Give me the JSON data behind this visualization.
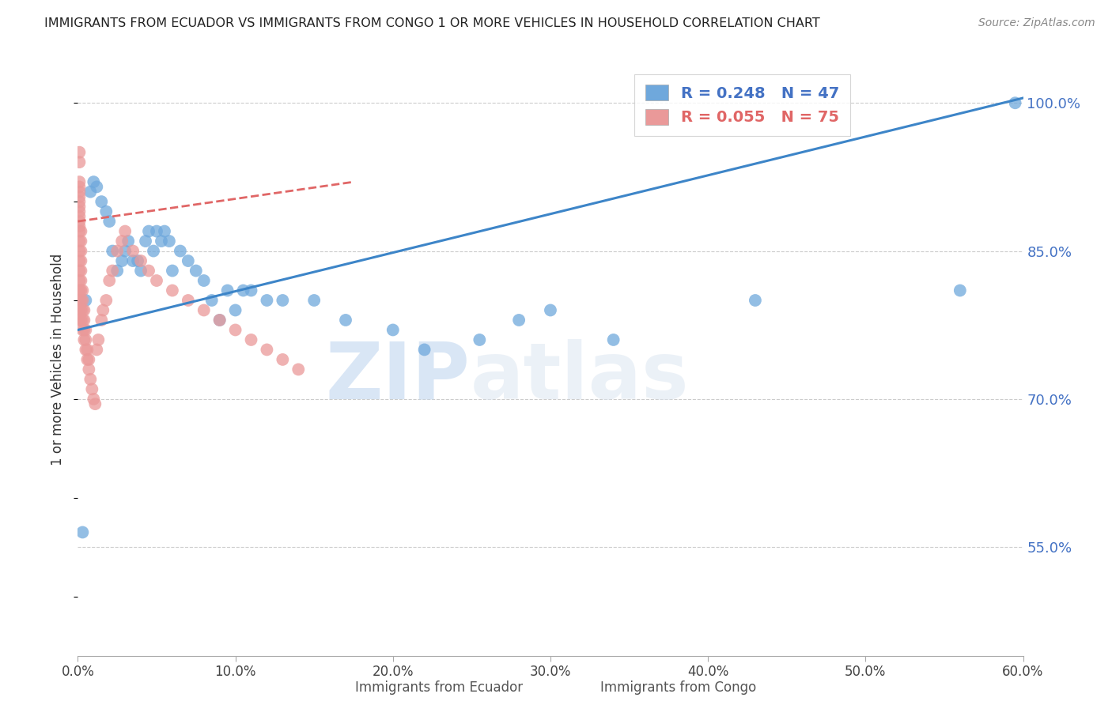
{
  "title": "IMMIGRANTS FROM ECUADOR VS IMMIGRANTS FROM CONGO 1 OR MORE VEHICLES IN HOUSEHOLD CORRELATION CHART",
  "source": "Source: ZipAtlas.com",
  "ylabel": "1 or more Vehicles in Household",
  "xlim_min": 0.0,
  "xlim_max": 0.6,
  "ylim_min": 0.44,
  "ylim_max": 1.04,
  "yticks": [
    0.55,
    0.7,
    0.85,
    1.0
  ],
  "ytick_labels": [
    "55.0%",
    "70.0%",
    "85.0%",
    "100.0%"
  ],
  "xticks": [
    0.0,
    0.1,
    0.2,
    0.3,
    0.4,
    0.5,
    0.6
  ],
  "xtick_labels": [
    "0.0%",
    "10.0%",
    "20.0%",
    "30.0%",
    "40.0%",
    "50.0%",
    "60.0%"
  ],
  "ecuador_color": "#6fa8dc",
  "congo_color": "#ea9999",
  "trend_ecuador_color": "#3d85c8",
  "trend_congo_color": "#e06666",
  "r_ecuador": 0.248,
  "n_ecuador": 47,
  "r_congo": 0.055,
  "n_congo": 75,
  "legend_ecuador": "Immigrants from Ecuador",
  "legend_congo": "Immigrants from Congo",
  "watermark_zip": "ZIP",
  "watermark_atlas": "atlas",
  "ecuador_x": [
    0.003,
    0.005,
    0.008,
    0.01,
    0.012,
    0.015,
    0.018,
    0.02,
    0.022,
    0.025,
    0.028,
    0.03,
    0.032,
    0.035,
    0.038,
    0.04,
    0.043,
    0.045,
    0.048,
    0.05,
    0.053,
    0.055,
    0.058,
    0.06,
    0.065,
    0.07,
    0.075,
    0.08,
    0.085,
    0.09,
    0.095,
    0.1,
    0.105,
    0.11,
    0.12,
    0.13,
    0.15,
    0.17,
    0.2,
    0.22,
    0.255,
    0.3,
    0.34,
    0.28,
    0.43,
    0.56,
    0.595
  ],
  "ecuador_y": [
    0.565,
    0.8,
    0.91,
    0.92,
    0.915,
    0.9,
    0.89,
    0.88,
    0.85,
    0.83,
    0.84,
    0.85,
    0.86,
    0.84,
    0.84,
    0.83,
    0.86,
    0.87,
    0.85,
    0.87,
    0.86,
    0.87,
    0.86,
    0.83,
    0.85,
    0.84,
    0.83,
    0.82,
    0.8,
    0.78,
    0.81,
    0.79,
    0.81,
    0.81,
    0.8,
    0.8,
    0.8,
    0.78,
    0.77,
    0.75,
    0.76,
    0.79,
    0.76,
    0.78,
    0.8,
    0.81,
    1.0
  ],
  "ecuador_trend_x0": 0.0,
  "ecuador_trend_y0": 0.77,
  "ecuador_trend_x1": 0.6,
  "ecuador_trend_y1": 1.005,
  "congo_x": [
    0.001,
    0.001,
    0.001,
    0.001,
    0.001,
    0.001,
    0.001,
    0.001,
    0.001,
    0.001,
    0.001,
    0.001,
    0.001,
    0.001,
    0.001,
    0.001,
    0.001,
    0.001,
    0.001,
    0.001,
    0.002,
    0.002,
    0.002,
    0.002,
    0.002,
    0.002,
    0.002,
    0.002,
    0.002,
    0.002,
    0.003,
    0.003,
    0.003,
    0.003,
    0.003,
    0.004,
    0.004,
    0.004,
    0.004,
    0.005,
    0.005,
    0.005,
    0.006,
    0.006,
    0.007,
    0.007,
    0.008,
    0.009,
    0.01,
    0.011,
    0.012,
    0.013,
    0.015,
    0.016,
    0.018,
    0.02,
    0.022,
    0.025,
    0.028,
    0.03,
    0.035,
    0.04,
    0.045,
    0.05,
    0.06,
    0.07,
    0.08,
    0.09,
    0.1,
    0.11,
    0.12,
    0.13,
    0.14,
    0.001,
    0.001
  ],
  "congo_y": [
    0.78,
    0.79,
    0.8,
    0.81,
    0.82,
    0.83,
    0.84,
    0.85,
    0.86,
    0.87,
    0.875,
    0.88,
    0.885,
    0.89,
    0.895,
    0.9,
    0.905,
    0.91,
    0.915,
    0.92,
    0.78,
    0.79,
    0.8,
    0.81,
    0.82,
    0.83,
    0.84,
    0.85,
    0.86,
    0.87,
    0.77,
    0.78,
    0.79,
    0.8,
    0.81,
    0.76,
    0.77,
    0.78,
    0.79,
    0.75,
    0.76,
    0.77,
    0.74,
    0.75,
    0.73,
    0.74,
    0.72,
    0.71,
    0.7,
    0.695,
    0.75,
    0.76,
    0.78,
    0.79,
    0.8,
    0.82,
    0.83,
    0.85,
    0.86,
    0.87,
    0.85,
    0.84,
    0.83,
    0.82,
    0.81,
    0.8,
    0.79,
    0.78,
    0.77,
    0.76,
    0.75,
    0.74,
    0.73,
    0.94,
    0.95
  ],
  "congo_trend_x0": 0.0,
  "congo_trend_y0": 0.88,
  "congo_trend_x1": 0.175,
  "congo_trend_y1": 0.92
}
